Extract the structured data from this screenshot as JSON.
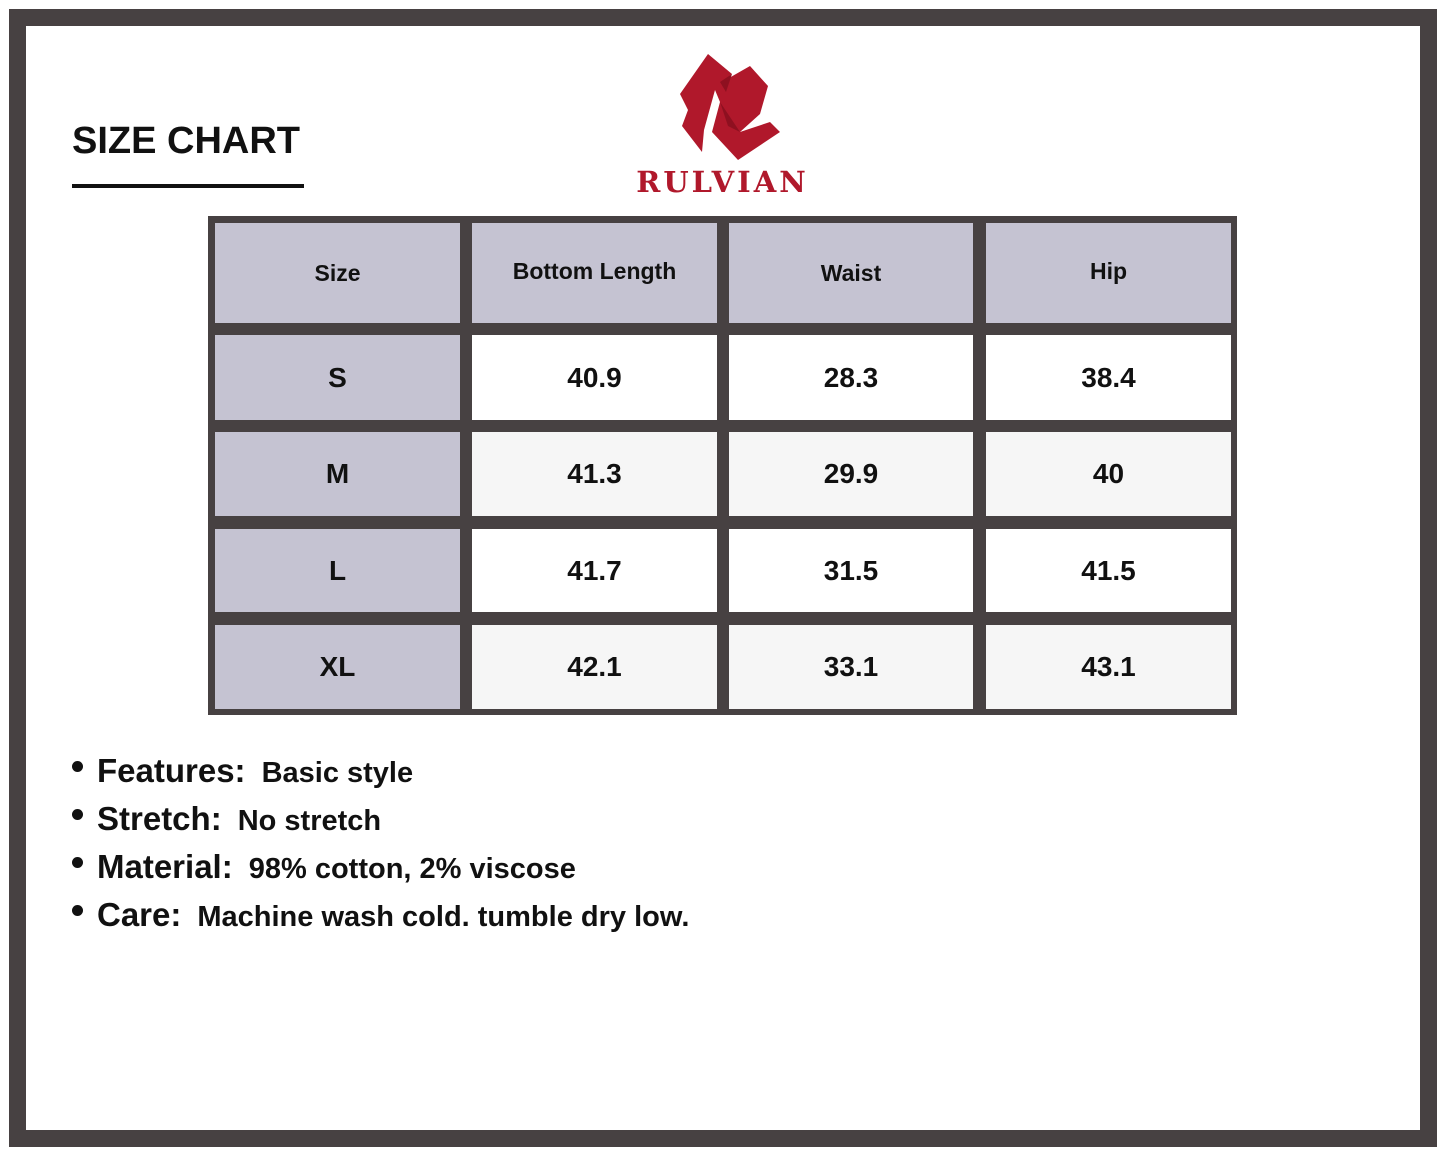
{
  "title": "SIZE CHART",
  "brand": {
    "name": "RULVIAN",
    "color": "#b0182b"
  },
  "table": {
    "headers": [
      "Size",
      "Bottom Length",
      "Waist",
      "Hip"
    ],
    "rows": [
      [
        "S",
        "40.9",
        "28.3",
        "38.4"
      ],
      [
        "M",
        "41.3",
        "29.9",
        "40"
      ],
      [
        "L",
        "41.7",
        "31.5",
        "41.5"
      ],
      [
        "XL",
        "42.1",
        "33.1",
        "43.1"
      ]
    ],
    "header_color": "#c5c3d2",
    "border_color": "#474142"
  },
  "details": [
    {
      "label": "Features:",
      "value": "Basic style"
    },
    {
      "label": "Stretch:",
      "value": "No stretch"
    },
    {
      "label": "Material:",
      "value": "98% cotton, 2% viscose"
    },
    {
      "label": "Care:",
      "value": "Machine wash cold. tumble dry low."
    }
  ]
}
